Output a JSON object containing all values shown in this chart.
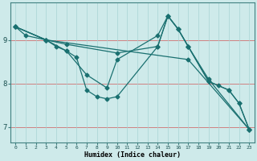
{
  "xlabel": "Humidex (Indice chaleur)",
  "bg_color": "#ceeaea",
  "line_color": "#1a7070",
  "marker": "D",
  "markersize": 2.5,
  "linewidth": 0.9,
  "lines": [
    {
      "x": [
        0,
        1,
        3,
        5,
        10,
        14,
        15,
        16,
        17,
        19,
        20,
        21,
        22,
        23
      ],
      "y": [
        9.3,
        9.1,
        9.0,
        8.9,
        8.7,
        8.85,
        9.55,
        9.25,
        8.85,
        8.05,
        7.95,
        7.85,
        7.55,
        6.95
      ]
    },
    {
      "x": [
        0,
        3,
        4,
        5,
        7,
        9,
        10,
        14,
        15,
        16,
        17,
        19,
        21,
        22,
        23
      ],
      "y": [
        9.3,
        9.0,
        8.85,
        8.75,
        8.2,
        7.9,
        8.55,
        9.1,
        9.55,
        9.25,
        8.85,
        8.05,
        7.85,
        7.55,
        6.95
      ]
    },
    {
      "x": [
        0,
        3,
        5,
        6,
        7,
        8,
        9,
        10,
        14,
        15,
        16,
        17,
        19,
        23
      ],
      "y": [
        9.3,
        9.0,
        8.75,
        8.6,
        7.85,
        7.7,
        7.65,
        7.7,
        8.85,
        9.55,
        9.25,
        8.85,
        8.1,
        6.95
      ]
    },
    {
      "x": [
        0,
        3,
        17,
        23
      ],
      "y": [
        9.3,
        9.0,
        8.55,
        6.95
      ]
    }
  ],
  "xlim": [
    -0.5,
    23.5
  ],
  "ylim": [
    6.65,
    9.85
  ],
  "yticks": [
    7,
    8,
    9
  ],
  "xticks": [
    0,
    1,
    2,
    3,
    4,
    5,
    6,
    7,
    8,
    9,
    10,
    11,
    12,
    13,
    14,
    15,
    16,
    17,
    18,
    19,
    20,
    21,
    22,
    23
  ],
  "figsize": [
    3.2,
    2.0
  ],
  "dpi": 100
}
